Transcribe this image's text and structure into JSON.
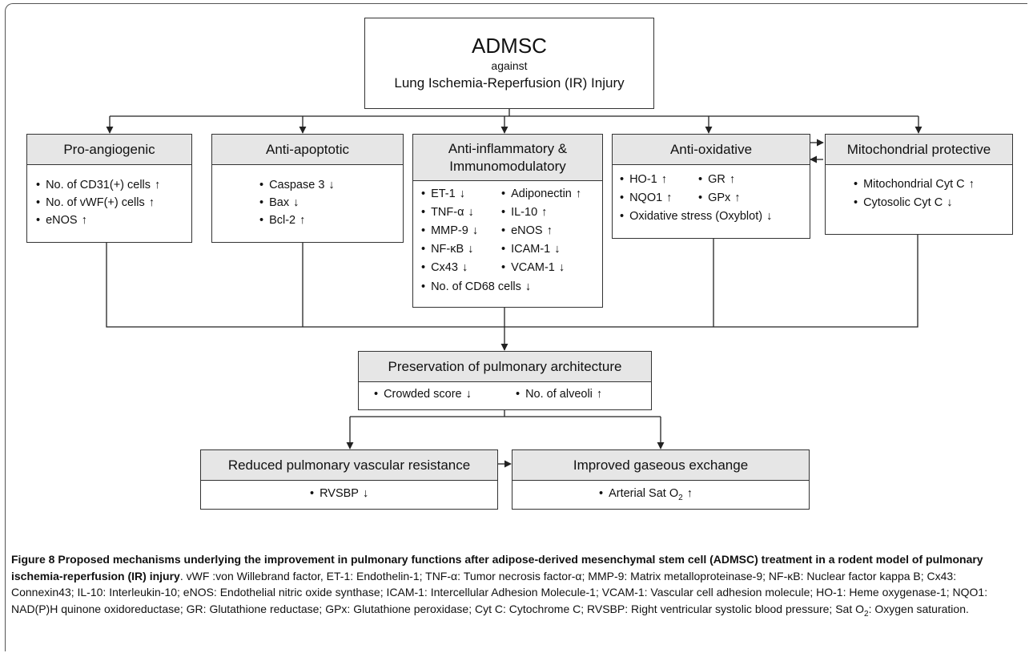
{
  "top": {
    "title": "ADMSC",
    "subtitle": "against",
    "line": "Lung Ischemia-Reperfusion (IR) Injury"
  },
  "pro_angiogenic": {
    "title": "Pro-angiogenic",
    "items": [
      {
        "t": "No. of CD31(+) cells",
        "a": "↑"
      },
      {
        "t": "No. of vWF(+) cells",
        "a": "↑"
      },
      {
        "t": "eNOS",
        "a": "↑"
      }
    ]
  },
  "anti_apoptotic": {
    "title": "Anti-apoptotic",
    "items": [
      {
        "t": "Caspase 3",
        "a": "↓"
      },
      {
        "t": "Bax",
        "a": "↓"
      },
      {
        "t": "Bcl-2",
        "a": "↑"
      }
    ]
  },
  "anti_inflammatory": {
    "title_line1": "Anti-inflammatory &",
    "title_line2": "Immunomodulatory",
    "left": [
      {
        "t": "ET-1",
        "a": "↓"
      },
      {
        "t": "TNF-α",
        "a": "↓"
      },
      {
        "t": "MMP-9",
        "a": "↓"
      },
      {
        "t": "NF-κB",
        "a": "↓"
      },
      {
        "t": "Cx43",
        "a": "↓"
      }
    ],
    "right": [
      {
        "t": "Adiponectin",
        "a": "↑"
      },
      {
        "t": "IL-10",
        "a": "↑"
      },
      {
        "t": "eNOS",
        "a": "↑"
      },
      {
        "t": "ICAM-1",
        "a": "↓"
      },
      {
        "t": "VCAM-1",
        "a": "↓"
      }
    ],
    "bottom": {
      "t": "No. of CD68 cells",
      "a": "↓"
    }
  },
  "anti_oxidative": {
    "title": "Anti-oxidative",
    "items": [
      {
        "t": "HO-1",
        "a": "↑"
      },
      {
        "t": "GR",
        "a": "↑"
      },
      {
        "t": "NQO1",
        "a": "↑"
      },
      {
        "t": "GPx",
        "a": "↑"
      },
      {
        "t": "Oxidative stress (Oxyblot)",
        "a": "↓"
      }
    ]
  },
  "mito": {
    "title": "Mitochondrial protective",
    "items": [
      {
        "t": "Mitochondrial Cyt C",
        "a": "↑"
      },
      {
        "t": "Cytosolic Cyt C",
        "a": "↓"
      }
    ]
  },
  "preservation": {
    "title": "Preservation of pulmonary architecture",
    "items": [
      {
        "t": "Crowded score",
        "a": "↓"
      },
      {
        "t": "No. of alveoli",
        "a": "↑"
      }
    ]
  },
  "reduced": {
    "title": "Reduced pulmonary vascular resistance",
    "items": [
      {
        "t": "RVSBP",
        "a": "↓"
      }
    ]
  },
  "improved": {
    "title": "Improved gaseous exchange",
    "item_pre": "Arterial Sat O",
    "item_sub": "2",
    "item_arrow": "↑"
  },
  "bullet": "•",
  "caption": {
    "label": "Figure 8",
    "bold": "Proposed mechanisms underlying the improvement in pulmonary functions after adipose-derived mesenchymal stem cell (ADMSC) treatment in a rodent model of pulmonary ischemia-reperfusion (IR) injury",
    "text": ". vWF :von Willebrand factor, ET-1: Endothelin-1; TNF-α: Tumor necrosis factor-α; MMP-9: Matrix metalloproteinase-9; NF-κB: Nuclear factor kappa B; Cx43: Connexin43; IL-10: Interleukin-10; eNOS: Endothelial nitric oxide synthase; ICAM-1: Intercellular Adhesion Molecule-1; VCAM-1: Vascular cell adhesion molecule; HO-1: Heme oxygenase-1; NQO1: NAD(P)H quinone oxidoreductase; GR: Glutathione reductase; GPx: Glutathione peroxidase; Cyt C: Cytochrome C; RVSBP: Right ventricular systolic blood pressure; Sat O",
    "sub": "2",
    "end": ": Oxygen saturation."
  }
}
